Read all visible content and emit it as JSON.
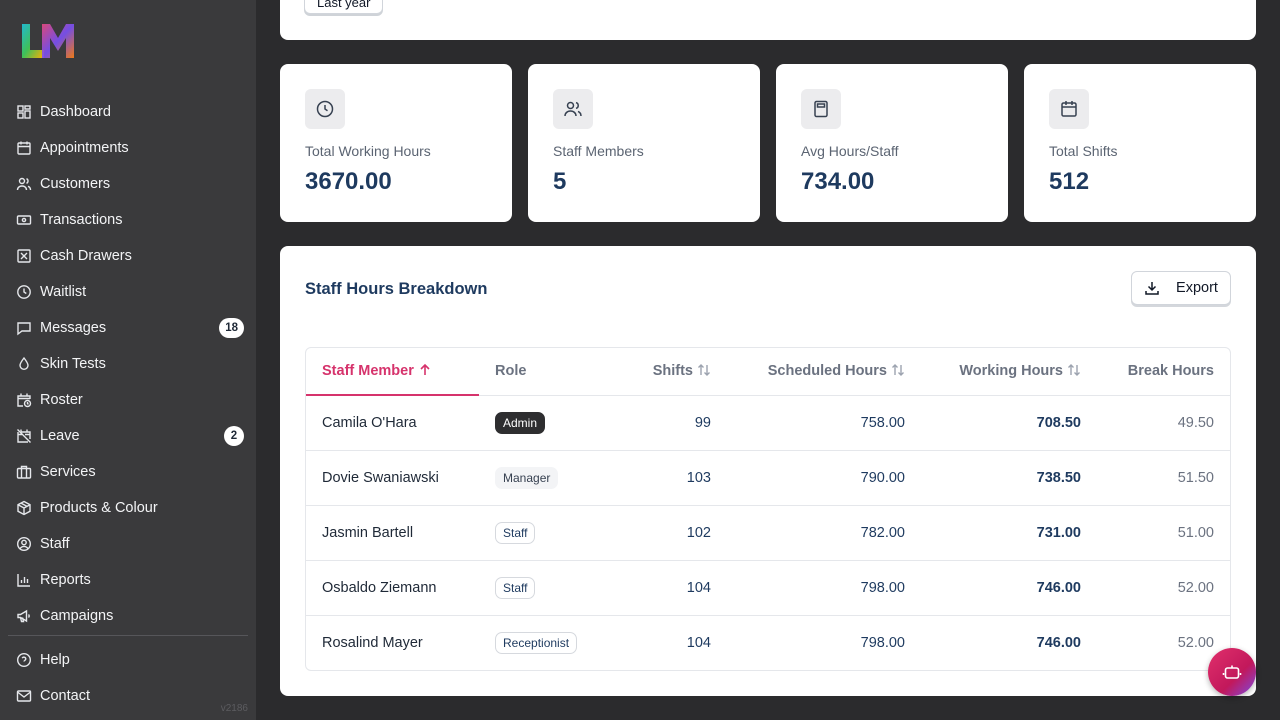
{
  "brand": {
    "logo_text": "LM",
    "version": "v2186"
  },
  "sidebar": {
    "items": [
      {
        "label": "Dashboard",
        "icon": "dashboard-icon"
      },
      {
        "label": "Appointments",
        "icon": "calendar-icon"
      },
      {
        "label": "Customers",
        "icon": "users-icon"
      },
      {
        "label": "Transactions",
        "icon": "banknote-icon"
      },
      {
        "label": "Cash Drawers",
        "icon": "cash-drawer-icon"
      },
      {
        "label": "Waitlist",
        "icon": "clock-icon"
      },
      {
        "label": "Messages",
        "icon": "message-icon",
        "badge": "18"
      },
      {
        "label": "Skin Tests",
        "icon": "droplet-icon"
      },
      {
        "label": "Roster",
        "icon": "calendar-clock-icon"
      },
      {
        "label": "Leave",
        "icon": "calendar-off-icon",
        "badge": "2"
      },
      {
        "label": "Services",
        "icon": "briefcase-icon"
      },
      {
        "label": "Products & Colour",
        "icon": "package-icon"
      },
      {
        "label": "Staff",
        "icon": "user-circle-icon"
      },
      {
        "label": "Reports",
        "icon": "bar-chart-icon"
      },
      {
        "label": "Campaigns",
        "icon": "megaphone-icon"
      }
    ],
    "bottom_items": [
      {
        "label": "Help",
        "icon": "help-circle-icon"
      },
      {
        "label": "Contact",
        "icon": "mail-icon"
      }
    ]
  },
  "filter": {
    "period_label": "Last year"
  },
  "stats": [
    {
      "label": "Total Working Hours",
      "value": "3670.00",
      "icon": "clock-icon"
    },
    {
      "label": "Staff Members",
      "value": "5",
      "icon": "users-icon"
    },
    {
      "label": "Avg Hours/Staff",
      "value": "734.00",
      "icon": "calculator-icon"
    },
    {
      "label": "Total Shifts",
      "value": "512",
      "icon": "calendar-icon"
    }
  ],
  "breakdown": {
    "title": "Staff Hours Breakdown",
    "export_label": "Export",
    "columns": {
      "name": "Staff Member",
      "role": "Role",
      "shifts": "Shifts",
      "scheduled": "Scheduled Hours",
      "working": "Working Hours",
      "break": "Break Hours"
    },
    "rows": [
      {
        "name": "Camila O'Hara",
        "role": "Admin",
        "shifts": "99",
        "scheduled": "758.00",
        "working": "708.50",
        "break": "49.50"
      },
      {
        "name": "Dovie Swaniawski",
        "role": "Manager",
        "shifts": "103",
        "scheduled": "790.00",
        "working": "738.50",
        "break": "51.50"
      },
      {
        "name": "Jasmin Bartell",
        "role": "Staff",
        "shifts": "102",
        "scheduled": "782.00",
        "working": "731.00",
        "break": "51.00"
      },
      {
        "name": "Osbaldo Ziemann",
        "role": "Staff",
        "shifts": "104",
        "scheduled": "798.00",
        "working": "746.00",
        "break": "52.00"
      },
      {
        "name": "Rosalind Mayer",
        "role": "Receptionist",
        "shifts": "104",
        "scheduled": "798.00",
        "working": "746.00",
        "break": "52.00"
      }
    ]
  },
  "colors": {
    "accent": "#d6336c",
    "value_text": "#1e3a5f",
    "sidebar_bg": "#3a3a3c"
  }
}
